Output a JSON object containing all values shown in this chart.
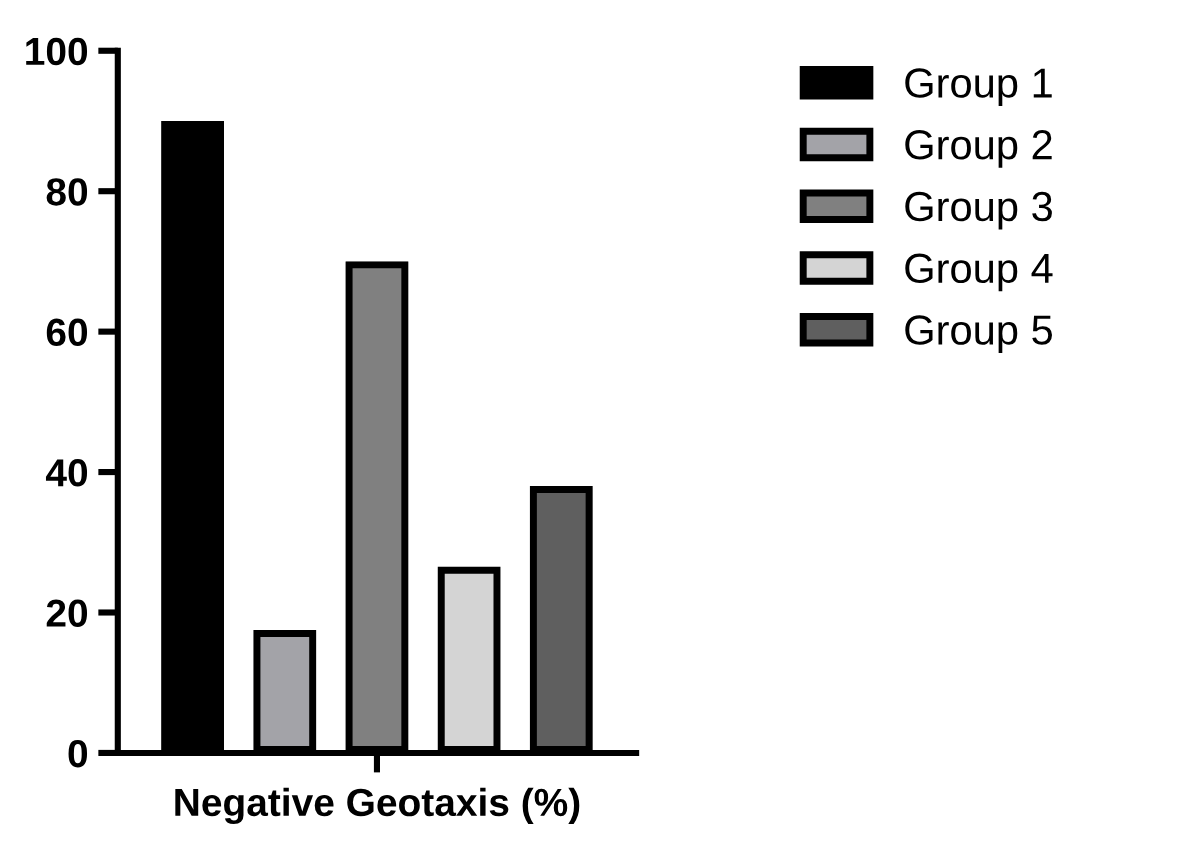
{
  "chart_data": {
    "type": "bar",
    "categories": [
      null
    ],
    "xlabel": "Negative Geotaxis (%)",
    "series": [
      {
        "name": "Group 1",
        "color": "#000000",
        "values": [
          90
        ]
      },
      {
        "name": "Group 2",
        "color": "#a3a3a8",
        "values": [
          17.5
        ]
      },
      {
        "name": "Group 3",
        "color": "#808080",
        "values": [
          70
        ]
      },
      {
        "name": "Group 4",
        "color": "#d4d4d4",
        "values": [
          26.5
        ]
      },
      {
        "name": "Group 5",
        "color": "#5f5f5f",
        "values": [
          38
        ]
      }
    ],
    "ylim": [
      0,
      100
    ],
    "yticks": [
      0,
      20,
      40,
      60,
      80,
      100
    ],
    "grid": false,
    "legend": "top right"
  }
}
